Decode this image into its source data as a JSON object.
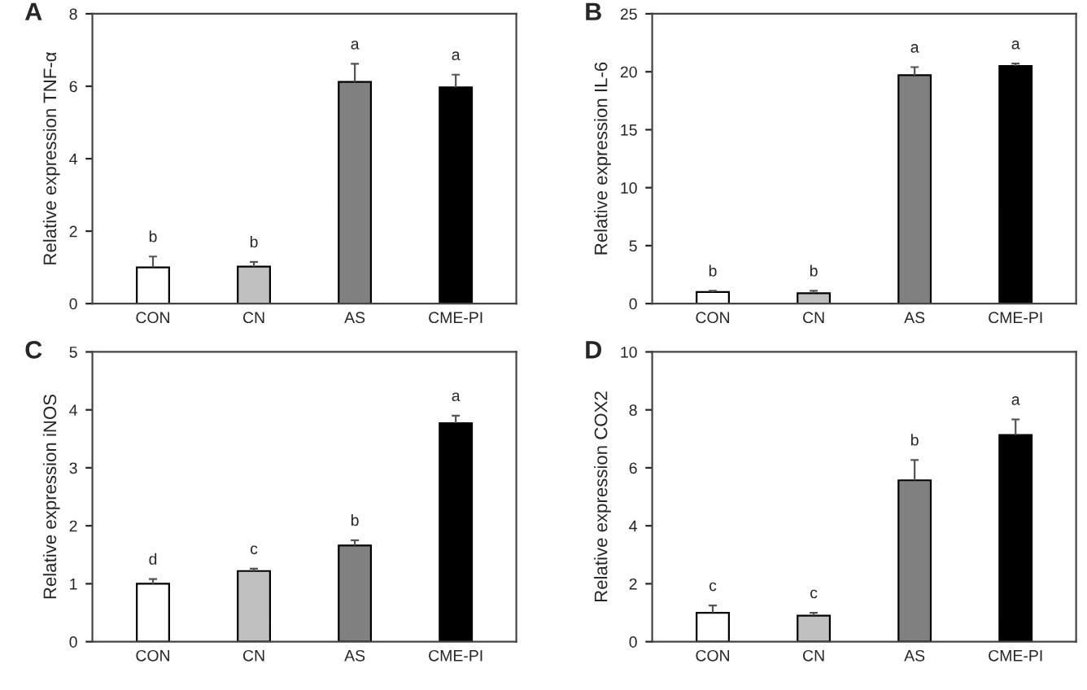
{
  "chart_data": [
    {
      "type": "bar",
      "title": "A",
      "ylabel": "Relative expression TNF-α",
      "categories": [
        "CON",
        "CN",
        "AS",
        "CME-PI"
      ],
      "values": [
        1.0,
        1.02,
        6.12,
        5.97
      ],
      "colors": [
        "#ffffff",
        "#c0c0c0",
        "#808080",
        "#000000"
      ],
      "errors": [
        [
          1.0,
          1.3
        ],
        [
          1.02,
          1.15
        ],
        [
          6.12,
          6.62
        ],
        [
          5.97,
          6.32
        ]
      ],
      "ylim": [
        0,
        8
      ],
      "yticks": [
        0,
        2,
        4,
        6,
        8
      ],
      "annotations": [
        {
          "text": "b",
          "x": "CON",
          "y": 1.3
        },
        {
          "text": "b",
          "x": "CN",
          "y": 1.15
        },
        {
          "text": "a",
          "x": "AS",
          "y": 6.62
        },
        {
          "text": "a",
          "x": "CME-PI",
          "y": 6.32
        }
      ]
    },
    {
      "type": "bar",
      "title": "B",
      "ylabel": "Relative expression IL-6",
      "categories": [
        "CON",
        "CN",
        "AS",
        "CME-PI"
      ],
      "values": [
        1.0,
        0.9,
        19.7,
        20.5
      ],
      "colors": [
        "#ffffff",
        "#c0c0c0",
        "#808080",
        "#000000"
      ],
      "errors": [
        [
          1.0,
          1.1
        ],
        [
          0.9,
          1.1
        ],
        [
          19.7,
          20.4
        ],
        [
          20.5,
          20.7
        ]
      ],
      "ylim": [
        0,
        25
      ],
      "yticks": [
        0,
        5,
        10,
        15,
        20,
        25
      ],
      "annotations": [
        {
          "text": "b",
          "x": "CON",
          "y": 1.1
        },
        {
          "text": "b",
          "x": "CN",
          "y": 1.1
        },
        {
          "text": "a",
          "x": "AS",
          "y": 20.4
        },
        {
          "text": "a",
          "x": "CME-PI",
          "y": 20.7
        }
      ]
    },
    {
      "type": "bar",
      "title": "C",
      "ylabel": "Relative expression iNOS",
      "categories": [
        "CON",
        "CN",
        "AS",
        "CME-PI"
      ],
      "values": [
        1.0,
        1.22,
        1.66,
        3.77
      ],
      "colors": [
        "#ffffff",
        "#c0c0c0",
        "#808080",
        "#000000"
      ],
      "errors": [
        [
          1.0,
          1.08
        ],
        [
          1.22,
          1.26
        ],
        [
          1.66,
          1.75
        ],
        [
          3.77,
          3.9
        ]
      ],
      "ylim": [
        0,
        5
      ],
      "yticks": [
        0,
        1,
        2,
        3,
        4,
        5
      ],
      "annotations": [
        {
          "text": "d",
          "x": "CON",
          "y": 1.08
        },
        {
          "text": "c",
          "x": "CN",
          "y": 1.26
        },
        {
          "text": "b",
          "x": "AS",
          "y": 1.75
        },
        {
          "text": "a",
          "x": "CME-PI",
          "y": 3.9
        }
      ]
    },
    {
      "type": "bar",
      "title": "D",
      "ylabel": "Relative expression COX2",
      "categories": [
        "CON",
        "CN",
        "AS",
        "CME-PI"
      ],
      "values": [
        1.0,
        0.9,
        5.57,
        7.13
      ],
      "colors": [
        "#ffffff",
        "#c0c0c0",
        "#808080",
        "#000000"
      ],
      "errors": [
        [
          1.0,
          1.25
        ],
        [
          0.9,
          1.0
        ],
        [
          5.57,
          6.27
        ],
        [
          7.13,
          7.67
        ]
      ],
      "ylim": [
        0,
        10
      ],
      "yticks": [
        0,
        2,
        4,
        6,
        8,
        10
      ],
      "annotations": [
        {
          "text": "c",
          "x": "CON",
          "y": 1.25
        },
        {
          "text": "c",
          "x": "CN",
          "y": 1.0
        },
        {
          "text": "b",
          "x": "AS",
          "y": 6.27
        },
        {
          "text": "a",
          "x": "CME-PI",
          "y": 7.67
        }
      ]
    }
  ]
}
